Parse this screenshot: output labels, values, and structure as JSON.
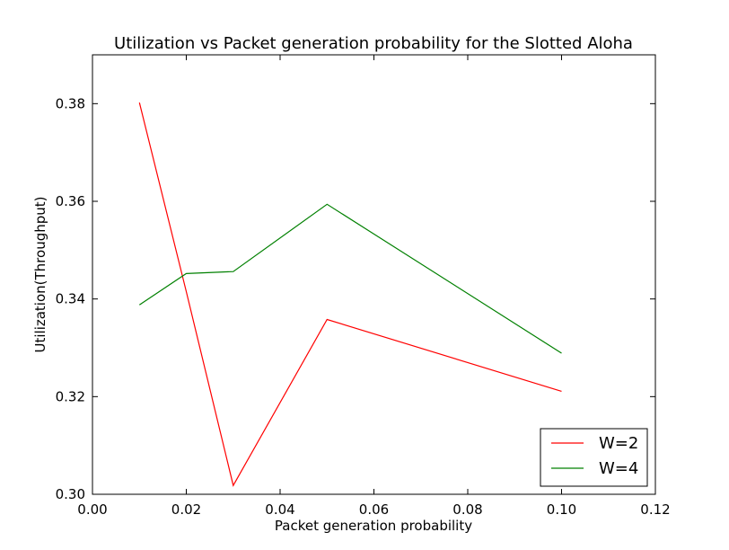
{
  "chart_data": {
    "type": "line",
    "title": "Utilization vs Packet generation probability for the Slotted Aloha",
    "xlabel": "Packet generation probability",
    "ylabel": "Utilization(Throughput)",
    "xlim": [
      0.0,
      0.12
    ],
    "ylim": [
      0.3,
      0.39
    ],
    "xticks": [
      0.0,
      0.02,
      0.04,
      0.06,
      0.08,
      0.1,
      0.12
    ],
    "xtick_labels": [
      "0.00",
      "0.02",
      "0.04",
      "0.06",
      "0.08",
      "0.10",
      "0.12"
    ],
    "yticks": [
      0.3,
      0.32,
      0.34,
      0.36,
      0.38
    ],
    "ytick_labels": [
      "0.30",
      "0.32",
      "0.34",
      "0.36",
      "0.38"
    ],
    "grid": false,
    "legend_position": "bottom-right",
    "series": [
      {
        "name": "W=2",
        "color": "#ff0000",
        "x": [
          0.01,
          0.02,
          0.03,
          0.05,
          0.1
        ],
        "y": [
          0.3802,
          0.3415,
          0.3018,
          0.3358,
          0.3211
        ]
      },
      {
        "name": "W=4",
        "color": "#008000",
        "x": [
          0.01,
          0.02,
          0.03,
          0.05,
          0.1
        ],
        "y": [
          0.3388,
          0.3452,
          0.3456,
          0.3594,
          0.3289
        ]
      }
    ]
  }
}
